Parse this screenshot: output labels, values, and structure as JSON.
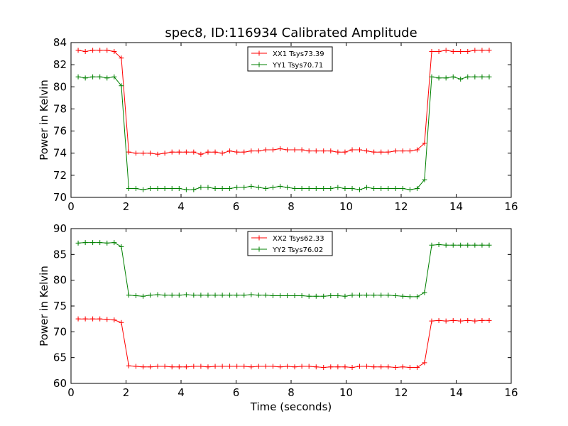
{
  "figure": {
    "title": "spec8, ID:116934 Calibrated Amplitude",
    "xlabel": "Time (seconds)"
  },
  "chart_data": [
    {
      "type": "line",
      "title": "spec8, ID:116934 Calibrated Amplitude",
      "xlabel": "",
      "ylabel": "Power in Kelvin",
      "xlim": [
        0,
        16
      ],
      "ylim": [
        70,
        84
      ],
      "xticks": [
        "0",
        "2",
        "4",
        "6",
        "8",
        "10",
        "12",
        "14",
        "16"
      ],
      "yticks": [
        "70",
        "72",
        "74",
        "76",
        "78",
        "80",
        "82",
        "84"
      ],
      "legend_position": "top-center",
      "x": [
        0.26,
        0.52,
        0.79,
        1.05,
        1.31,
        1.57,
        1.83,
        2.1,
        2.36,
        2.62,
        2.88,
        3.15,
        3.41,
        3.67,
        3.93,
        4.19,
        4.46,
        4.72,
        4.98,
        5.24,
        5.5,
        5.77,
        6.03,
        6.29,
        6.55,
        6.82,
        7.08,
        7.34,
        7.6,
        7.86,
        8.13,
        8.39,
        8.65,
        8.91,
        9.18,
        9.44,
        9.7,
        9.96,
        10.22,
        10.49,
        10.75,
        11.01,
        11.27,
        11.53,
        11.8,
        12.06,
        12.32,
        12.58,
        12.85,
        13.11,
        13.37,
        13.63,
        13.89,
        14.16,
        14.42,
        14.68,
        14.94,
        15.2
      ],
      "series": [
        {
          "name": "XX1 Tsys73.39",
          "color": "#ff0000",
          "values": [
            83.3,
            83.2,
            83.3,
            83.3,
            83.3,
            83.2,
            82.6,
            74.1,
            74.0,
            74.0,
            74.0,
            73.9,
            74.0,
            74.1,
            74.1,
            74.1,
            74.1,
            73.9,
            74.1,
            74.1,
            74.0,
            74.2,
            74.1,
            74.1,
            74.2,
            74.2,
            74.3,
            74.3,
            74.4,
            74.3,
            74.3,
            74.3,
            74.2,
            74.2,
            74.2,
            74.2,
            74.1,
            74.1,
            74.3,
            74.3,
            74.2,
            74.1,
            74.1,
            74.1,
            74.2,
            74.2,
            74.2,
            74.3,
            74.9,
            83.2,
            83.2,
            83.3,
            83.2,
            83.2,
            83.2,
            83.3,
            83.3,
            83.3
          ]
        },
        {
          "name": "YY1 Tsys70.71",
          "color": "#008000",
          "values": [
            80.9,
            80.8,
            80.9,
            80.9,
            80.8,
            80.9,
            80.1,
            70.8,
            70.8,
            70.7,
            70.8,
            70.8,
            70.8,
            70.8,
            70.8,
            70.7,
            70.7,
            70.9,
            70.9,
            70.8,
            70.8,
            70.8,
            70.9,
            70.9,
            71.0,
            70.9,
            70.8,
            70.9,
            71.0,
            70.9,
            70.8,
            70.8,
            70.8,
            70.8,
            70.8,
            70.8,
            70.9,
            70.8,
            70.8,
            70.7,
            70.9,
            70.8,
            70.8,
            70.8,
            70.8,
            70.8,
            70.7,
            70.8,
            71.6,
            80.9,
            80.8,
            80.8,
            80.9,
            80.7,
            80.9,
            80.9,
            80.9,
            80.9
          ]
        }
      ]
    },
    {
      "type": "line",
      "title": "",
      "xlabel": "Time (seconds)",
      "ylabel": "Power in Kelvin",
      "xlim": [
        0,
        16
      ],
      "ylim": [
        60,
        90
      ],
      "xticks": [
        "0",
        "2",
        "4",
        "6",
        "8",
        "10",
        "12",
        "14",
        "16"
      ],
      "yticks": [
        "60",
        "65",
        "70",
        "75",
        "80",
        "85",
        "90"
      ],
      "legend_position": "top-center",
      "x": [
        0.26,
        0.52,
        0.79,
        1.05,
        1.31,
        1.57,
        1.83,
        2.1,
        2.36,
        2.62,
        2.88,
        3.15,
        3.41,
        3.67,
        3.93,
        4.19,
        4.46,
        4.72,
        4.98,
        5.24,
        5.5,
        5.77,
        6.03,
        6.29,
        6.55,
        6.82,
        7.08,
        7.34,
        7.6,
        7.86,
        8.13,
        8.39,
        8.65,
        8.91,
        9.18,
        9.44,
        9.7,
        9.96,
        10.22,
        10.49,
        10.75,
        11.01,
        11.27,
        11.53,
        11.8,
        12.06,
        12.32,
        12.58,
        12.85,
        13.11,
        13.37,
        13.63,
        13.89,
        14.16,
        14.42,
        14.68,
        14.94,
        15.2
      ],
      "series": [
        {
          "name": "XX2 Tsys62.33",
          "color": "#ff0000",
          "values": [
            72.5,
            72.5,
            72.5,
            72.5,
            72.4,
            72.3,
            71.8,
            63.4,
            63.3,
            63.2,
            63.2,
            63.3,
            63.3,
            63.2,
            63.2,
            63.2,
            63.3,
            63.3,
            63.2,
            63.3,
            63.3,
            63.3,
            63.3,
            63.3,
            63.2,
            63.3,
            63.3,
            63.3,
            63.2,
            63.3,
            63.2,
            63.3,
            63.3,
            63.2,
            63.1,
            63.2,
            63.2,
            63.2,
            63.1,
            63.3,
            63.3,
            63.2,
            63.2,
            63.2,
            63.1,
            63.2,
            63.1,
            63.1,
            64.0,
            72.1,
            72.2,
            72.1,
            72.2,
            72.1,
            72.2,
            72.1,
            72.2,
            72.2
          ]
        },
        {
          "name": "YY2 Tsys76.02",
          "color": "#008000",
          "values": [
            87.2,
            87.3,
            87.3,
            87.3,
            87.2,
            87.3,
            86.5,
            77.1,
            77.0,
            76.9,
            77.1,
            77.2,
            77.1,
            77.1,
            77.1,
            77.2,
            77.1,
            77.1,
            77.1,
            77.1,
            77.1,
            77.1,
            77.1,
            77.1,
            77.2,
            77.1,
            77.1,
            77.0,
            77.0,
            77.0,
            77.0,
            77.0,
            76.9,
            76.9,
            76.9,
            77.0,
            77.0,
            76.9,
            77.1,
            77.1,
            77.1,
            77.1,
            77.1,
            77.1,
            77.0,
            76.9,
            76.8,
            76.8,
            77.6,
            86.8,
            86.9,
            86.8,
            86.8,
            86.8,
            86.8,
            86.8,
            86.8,
            86.8
          ]
        }
      ]
    }
  ]
}
